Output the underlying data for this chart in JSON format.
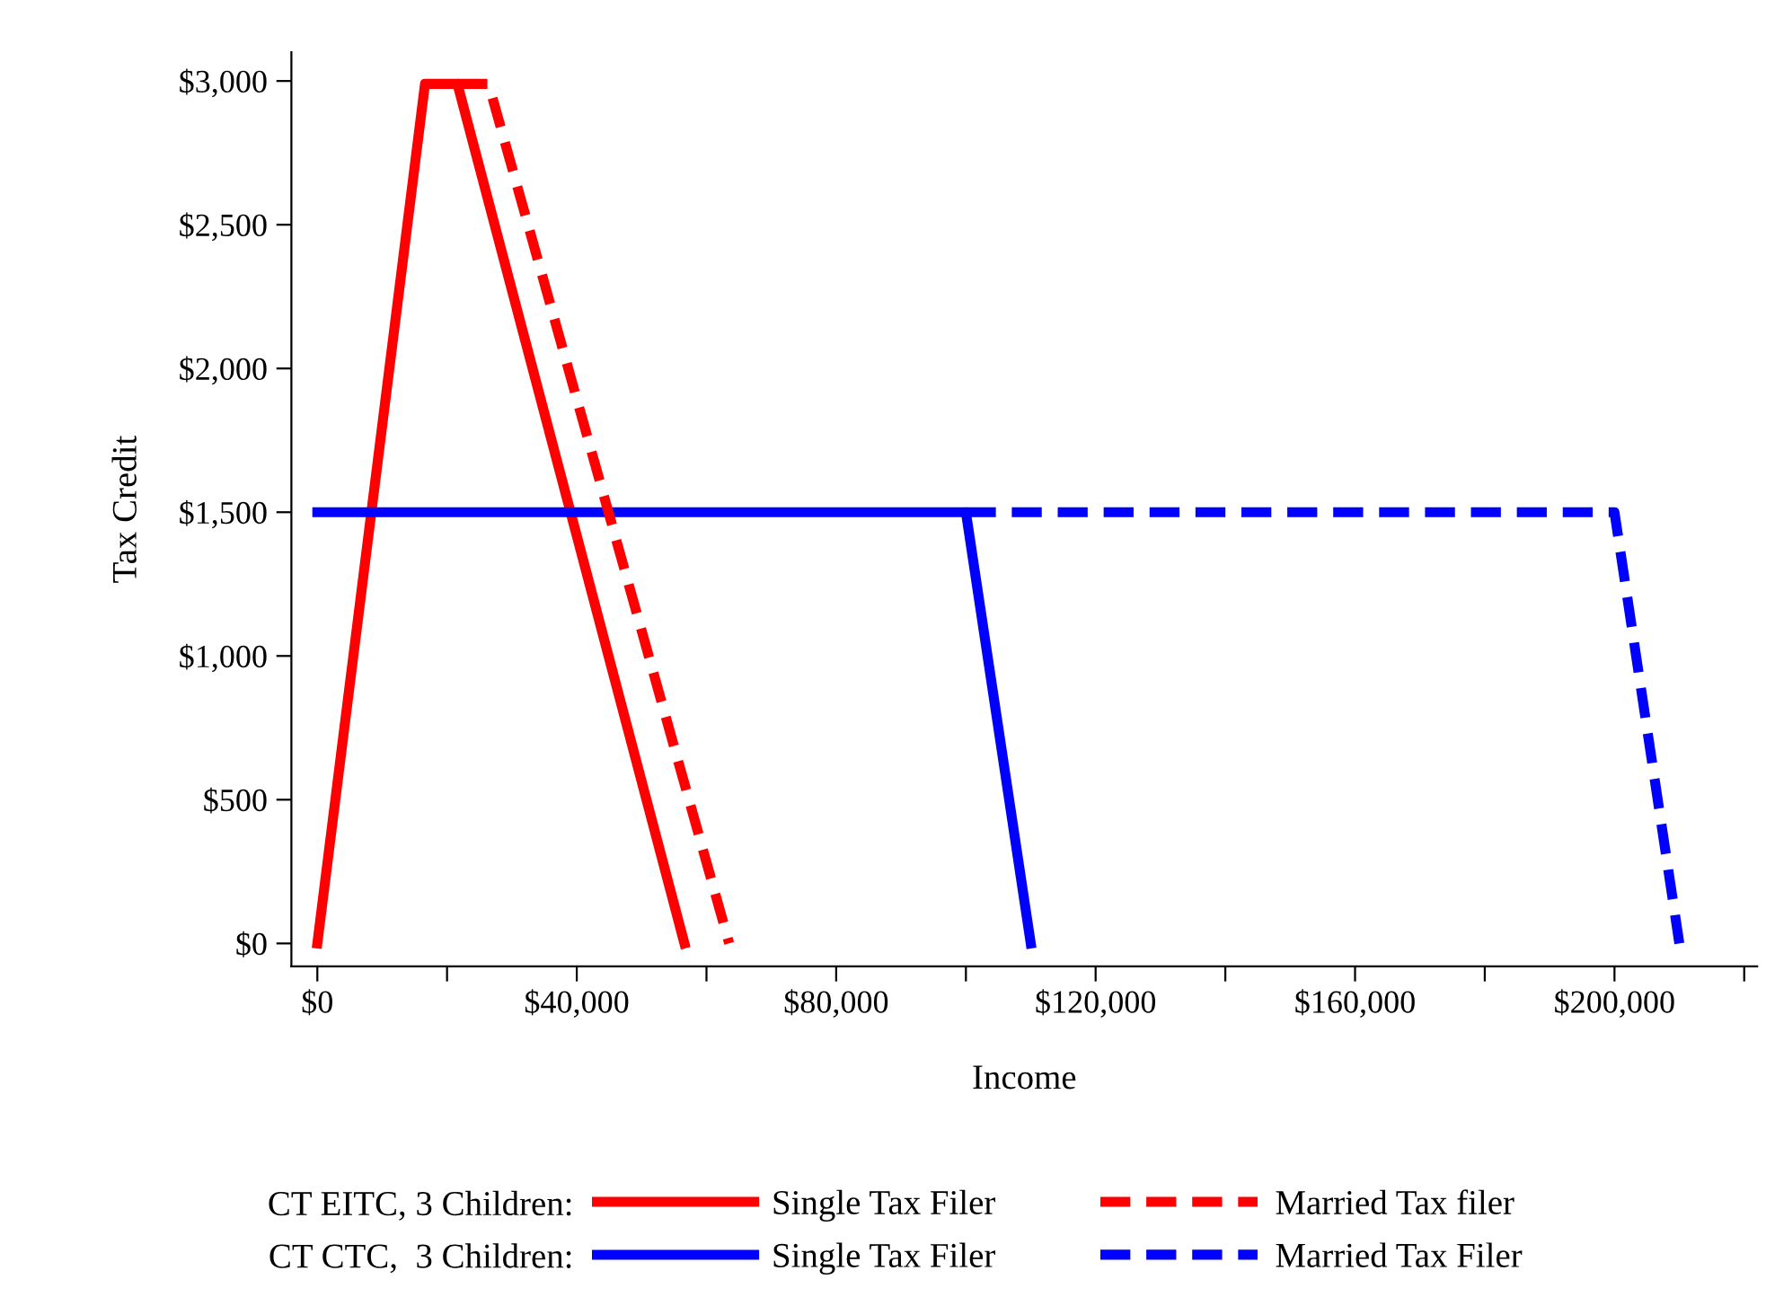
{
  "chart_data": {
    "type": "line",
    "xlabel": "Income",
    "ylabel": "Tax Credit",
    "xlim": [
      -4000,
      222000
    ],
    "ylim": [
      -80,
      3100
    ],
    "xticks": [
      {
        "value": 0,
        "label": "$0"
      },
      {
        "value": 20000,
        "label": null
      },
      {
        "value": 40000,
        "label": "$40,000"
      },
      {
        "value": 60000,
        "label": null
      },
      {
        "value": 80000,
        "label": "$80,000"
      },
      {
        "value": 100000,
        "label": null
      },
      {
        "value": 120000,
        "label": "$120,000"
      },
      {
        "value": 140000,
        "label": null
      },
      {
        "value": 160000,
        "label": "$160,000"
      },
      {
        "value": 180000,
        "label": null
      },
      {
        "value": 200000,
        "label": "$200,000"
      },
      {
        "value": 220000,
        "label": null
      }
    ],
    "yticks": [
      {
        "value": 0,
        "label": "$0"
      },
      {
        "value": 500,
        "label": "$500"
      },
      {
        "value": 1000,
        "label": "$1,000"
      },
      {
        "value": 1500,
        "label": "$1,500"
      },
      {
        "value": 2000,
        "label": "$2,000"
      },
      {
        "value": 2500,
        "label": "$2,500"
      },
      {
        "value": 3000,
        "label": "$3,000"
      }
    ],
    "grid": false,
    "legend": "bottom",
    "marker": "none",
    "annotations": [
      "CT EITC, 3 Children:",
      "CT CTC,  3 Children:"
    ],
    "series": [
      {
        "name": "Single Tax Filer",
        "color": "#ff0000",
        "line_style": "solid",
        "x": [
          0,
          16600,
          21600,
          56600
        ],
        "values": [
          0,
          2990,
          2990,
          0
        ]
      },
      {
        "name": "Single Tax Filer",
        "color": "#0000ff",
        "line_style": "solid",
        "x": [
          0,
          100000,
          110000
        ],
        "values": [
          1500,
          1500,
          0
        ]
      },
      {
        "name": "Married Tax filer",
        "color": "#ff0000",
        "line_style": "dashed",
        "x": [
          21600,
          26400,
          63500
        ],
        "values": [
          2990,
          2990,
          0
        ]
      },
      {
        "name": "Married Tax Filer",
        "color": "#0000ff",
        "line_style": "dashed",
        "x": [
          100000,
          200000,
          210000
        ],
        "values": [
          1500,
          1500,
          0
        ]
      }
    ]
  }
}
